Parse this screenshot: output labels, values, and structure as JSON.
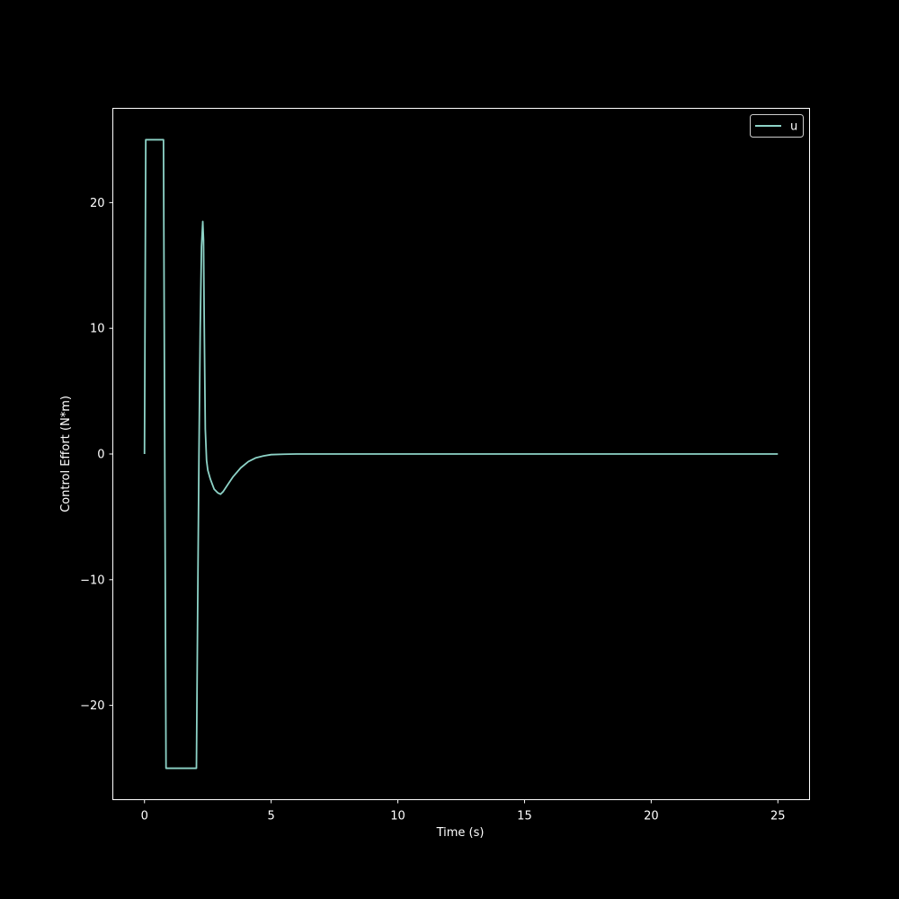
{
  "chart_data": {
    "type": "line",
    "title": "",
    "xlabel": "Time (s)",
    "ylabel": "Control Effort (N*m)",
    "xlim": [
      -1.25,
      26.25
    ],
    "ylim": [
      -27.5,
      27.5
    ],
    "xticks": [
      0,
      5,
      10,
      15,
      20,
      25
    ],
    "yticks": [
      -20,
      -10,
      0,
      10,
      20
    ],
    "xtick_labels": [
      "0",
      "5",
      "10",
      "15",
      "20",
      "25"
    ],
    "ytick_labels": [
      "−20",
      "−10",
      "0",
      "10",
      "20"
    ],
    "grid": false,
    "legend_position": "upper right",
    "series": [
      {
        "name": "u",
        "color": "#8dd3c7",
        "x": [
          0,
          0.05,
          0.1,
          0.7,
          0.75,
          0.8,
          0.85,
          2.05,
          2.1,
          2.15,
          2.2,
          2.25,
          2.3,
          2.33,
          2.36,
          2.4,
          2.45,
          2.5,
          2.6,
          2.75,
          2.9,
          3.0,
          3.1,
          3.3,
          3.5,
          3.8,
          4.1,
          4.4,
          4.7,
          5.0,
          5.5,
          6.0,
          7.0,
          8.0,
          10.0,
          15.0,
          20.0,
          25.0
        ],
        "y": [
          0,
          25,
          25,
          25,
          25,
          0,
          -25,
          -25,
          -12,
          0,
          10,
          16.5,
          18.5,
          17,
          10,
          2,
          -0.5,
          -1.3,
          -2,
          -2.8,
          -3.1,
          -3.2,
          -3.0,
          -2.4,
          -1.8,
          -1.1,
          -0.6,
          -0.3,
          -0.15,
          -0.05,
          -0.02,
          0,
          0,
          0,
          0,
          0,
          0,
          0
        ]
      }
    ]
  },
  "colors": {
    "background": "#000000",
    "axes": "#ffffff",
    "line": "#8dd3c7"
  }
}
